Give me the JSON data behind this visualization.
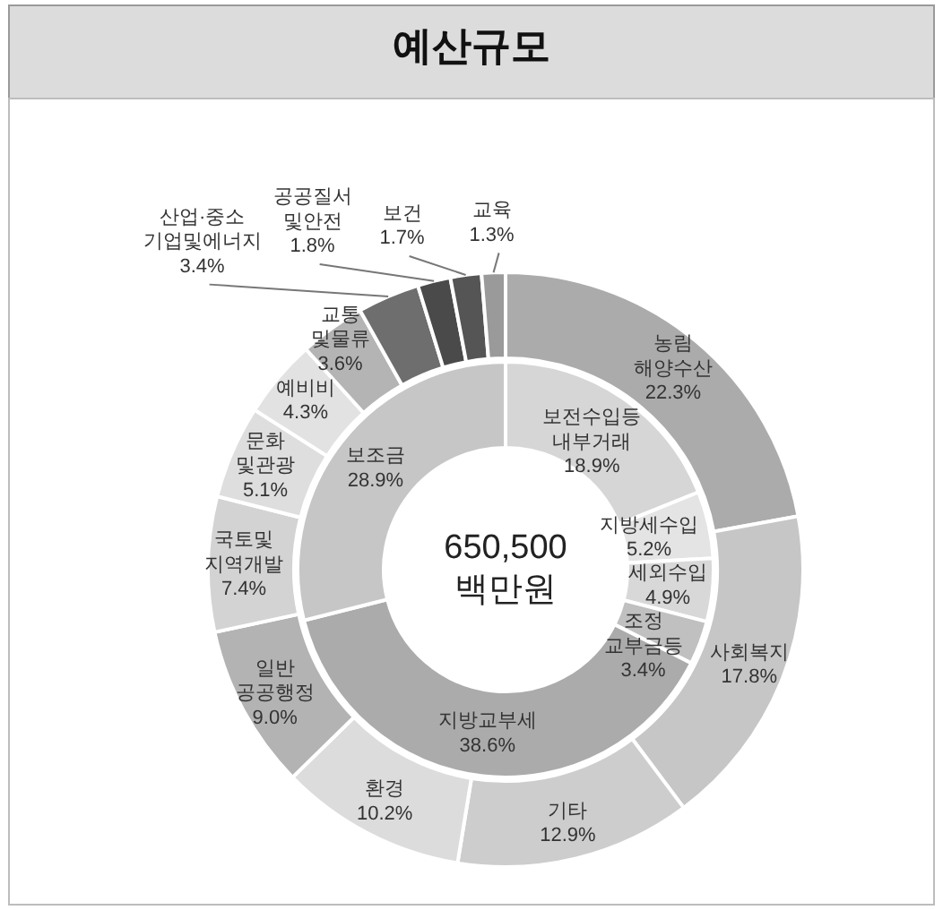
{
  "chart_data": [
    {
      "type": "donut",
      "title": "예산규모",
      "categories": [
        "농림\n해양수산",
        "사회복지",
        "기타",
        "환경",
        "일반\n공공행정",
        "국토및\n지역개발",
        "문화\n및관광",
        "예비비",
        "교통\n및물류",
        "산업·중소\n기업및에너지",
        "공공질서\n및안전",
        "보건",
        "교육"
      ],
      "values": [
        22.3,
        17.8,
        12.9,
        10.2,
        9.0,
        7.4,
        5.1,
        4.3,
        3.6,
        3.4,
        1.8,
        1.7,
        1.3
      ],
      "value_labels": [
        "22.3%",
        "17.8%",
        "12.9%",
        "10.2%",
        "9.0%",
        "7.4%",
        "5.1%",
        "4.3%",
        "3.6%",
        "3.4%",
        "1.8%",
        "1.7%",
        "1.3%"
      ],
      "colors": [
        "#ababab",
        "#c6c6c6",
        "#cdcdcd",
        "#dcdcdc",
        "#b3b3b3",
        "#d3d3d3",
        "#dedede",
        "#e2e2e2",
        "#b4b4b4",
        "#6e6e6e",
        "#4a4a4a",
        "#555555",
        "#9a9a9a"
      ]
    },
    {
      "type": "donut",
      "annotations": [
        "650,500\n백만원"
      ],
      "categories": [
        "보전수입등\n내부거래",
        "지방세수입",
        "세외수입",
        "조정\n교부금등",
        "지방교부세",
        "보조금"
      ],
      "values": [
        18.9,
        5.2,
        4.9,
        3.4,
        38.6,
        28.9
      ],
      "value_labels": [
        "18.9%",
        "5.2%",
        "4.9%",
        "3.4%",
        "38.6%",
        "28.9%"
      ],
      "colors": [
        "#d6d6d6",
        "#e4e4e4",
        "#d8d8d8",
        "#c0c0c0",
        "#ababab",
        "#c6c6c6"
      ]
    }
  ]
}
